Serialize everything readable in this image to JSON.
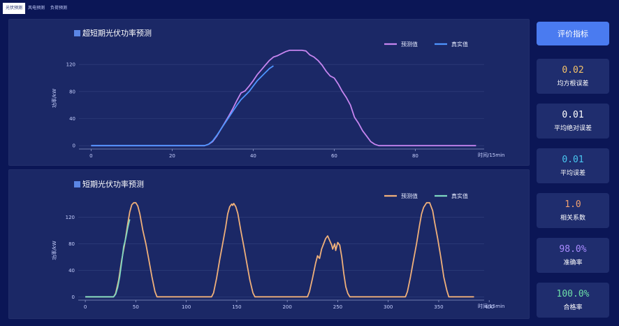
{
  "tabs": [
    {
      "label": "光伏预测",
      "active": true
    },
    {
      "label": "风电预测",
      "active": false
    },
    {
      "label": "负荷预测",
      "active": false
    }
  ],
  "colors": {
    "predicted_top": "#c685f0",
    "actual_top": "#4f95ff",
    "predicted_bottom": "#f0b07a",
    "actual_bottom": "#7ed7c1"
  },
  "chart_data": [
    {
      "type": "line",
      "title": "超短期光伏功率预测",
      "xlabel": "时间/15min",
      "ylabel": "功率/kW",
      "xlim": [
        -3,
        97
      ],
      "ylim": [
        -5,
        145
      ],
      "xticks": [
        0,
        20,
        40,
        60,
        80
      ],
      "yticks": [
        0,
        40,
        80,
        120
      ],
      "legend_position": "top-right",
      "series": [
        {
          "name": "预测值",
          "color": "#c685f0",
          "points": [
            [
              0,
              0
            ],
            [
              10,
              0
            ],
            [
              20,
              0
            ],
            [
              28,
              0
            ],
            [
              29,
              2
            ],
            [
              30,
              6
            ],
            [
              31,
              14
            ],
            [
              32,
              24
            ],
            [
              33,
              34
            ],
            [
              34,
              44
            ],
            [
              35,
              55
            ],
            [
              36,
              67
            ],
            [
              37,
              78
            ],
            [
              38,
              81
            ],
            [
              39,
              88
            ],
            [
              40,
              96
            ],
            [
              41,
              105
            ],
            [
              42,
              112
            ],
            [
              43,
              119
            ],
            [
              44,
              126
            ],
            [
              45,
              131
            ],
            [
              46,
              133
            ],
            [
              47,
              136
            ],
            [
              48,
              139
            ],
            [
              49,
              141
            ],
            [
              50,
              141
            ],
            [
              51,
              141
            ],
            [
              52,
              141
            ],
            [
              53,
              140
            ],
            [
              54,
              134
            ],
            [
              55,
              131
            ],
            [
              56,
              126
            ],
            [
              57,
              119
            ],
            [
              58,
              110
            ],
            [
              59,
              103
            ],
            [
              60,
              100
            ],
            [
              61,
              91
            ],
            [
              62,
              80
            ],
            [
              63,
              71
            ],
            [
              64,
              60
            ],
            [
              65,
              42
            ],
            [
              66,
              33
            ],
            [
              67,
              22
            ],
            [
              68,
              14
            ],
            [
              69,
              6
            ],
            [
              70,
              2
            ],
            [
              71,
              0
            ],
            [
              80,
              0
            ],
            [
              95,
              0
            ]
          ]
        },
        {
          "name": "真实值",
          "color": "#4f95ff",
          "points": [
            [
              0,
              0
            ],
            [
              10,
              0
            ],
            [
              20,
              0
            ],
            [
              28,
              0
            ],
            [
              29,
              2
            ],
            [
              30,
              7
            ],
            [
              31,
              15
            ],
            [
              32,
              24
            ],
            [
              33,
              33
            ],
            [
              34,
              42
            ],
            [
              35,
              51
            ],
            [
              36,
              60
            ],
            [
              37,
              68
            ],
            [
              38,
              74
            ],
            [
              39,
              80
            ],
            [
              40,
              88
            ],
            [
              41,
              96
            ],
            [
              42,
              102
            ],
            [
              43,
              108
            ],
            [
              44,
              114
            ],
            [
              45,
              118
            ]
          ]
        }
      ]
    },
    {
      "type": "line",
      "title": "短期光伏功率预测",
      "xlabel": "时间/15min",
      "ylabel": "功率/kW",
      "xlim": [
        -7,
        395
      ],
      "ylim": [
        -5,
        145
      ],
      "xticks": [
        0,
        50,
        100,
        150,
        200,
        250,
        300,
        350,
        400
      ],
      "yticks": [
        0,
        40,
        80,
        120
      ],
      "legend_position": "top-right",
      "series": [
        {
          "name": "预测值",
          "color": "#f0b07a",
          "points": [
            [
              0,
              0
            ],
            [
              28,
              0
            ],
            [
              30,
              5
            ],
            [
              33,
              25
            ],
            [
              36,
              55
            ],
            [
              39,
              80
            ],
            [
              42,
              110
            ],
            [
              44,
              128
            ],
            [
              46,
              139
            ],
            [
              48,
              142
            ],
            [
              50,
              142
            ],
            [
              52,
              137
            ],
            [
              54,
              125
            ],
            [
              57,
              100
            ],
            [
              60,
              80
            ],
            [
              63,
              55
            ],
            [
              66,
              30
            ],
            [
              69,
              8
            ],
            [
              71,
              0
            ],
            [
              125,
              0
            ],
            [
              127,
              6
            ],
            [
              130,
              28
            ],
            [
              133,
              55
            ],
            [
              136,
              80
            ],
            [
              139,
              105
            ],
            [
              141,
              125
            ],
            [
              143,
              136
            ],
            [
              145,
              140
            ],
            [
              146,
              138
            ],
            [
              147,
              141
            ],
            [
              149,
              136
            ],
            [
              151,
              126
            ],
            [
              154,
              100
            ],
            [
              157,
              76
            ],
            [
              160,
              50
            ],
            [
              163,
              25
            ],
            [
              166,
              6
            ],
            [
              168,
              0
            ],
            [
              220,
              0
            ],
            [
              222,
              8
            ],
            [
              225,
              28
            ],
            [
              228,
              50
            ],
            [
              230,
              62
            ],
            [
              232,
              58
            ],
            [
              234,
              72
            ],
            [
              236,
              80
            ],
            [
              238,
              88
            ],
            [
              240,
              92
            ],
            [
              242,
              85
            ],
            [
              244,
              78
            ],
            [
              245,
              72
            ],
            [
              247,
              80
            ],
            [
              248,
              70
            ],
            [
              250,
              82
            ],
            [
              252,
              78
            ],
            [
              254,
              60
            ],
            [
              256,
              35
            ],
            [
              258,
              15
            ],
            [
              260,
              5
            ],
            [
              262,
              0
            ],
            [
              317,
              0
            ],
            [
              319,
              8
            ],
            [
              322,
              30
            ],
            [
              325,
              55
            ],
            [
              328,
              80
            ],
            [
              331,
              108
            ],
            [
              333,
              125
            ],
            [
              335,
              135
            ],
            [
              338,
              142
            ],
            [
              341,
              142
            ],
            [
              344,
              130
            ],
            [
              346,
              112
            ],
            [
              349,
              88
            ],
            [
              352,
              60
            ],
            [
              355,
              30
            ],
            [
              358,
              10
            ],
            [
              360,
              0
            ],
            [
              385,
              0
            ]
          ]
        },
        {
          "name": "真实值",
          "color": "#7ed7c1",
          "points": [
            [
              0,
              0
            ],
            [
              28,
              0
            ],
            [
              30,
              4
            ],
            [
              32,
              14
            ],
            [
              34,
              30
            ],
            [
              36,
              52
            ],
            [
              37,
              64
            ],
            [
              38,
              76
            ],
            [
              39,
              82
            ],
            [
              40,
              88
            ],
            [
              41,
              96
            ],
            [
              42,
              104
            ],
            [
              43,
              111
            ],
            [
              44,
              117
            ]
          ]
        }
      ]
    }
  ],
  "side": {
    "button_label": "评价指标",
    "metrics": [
      {
        "value": "0.02",
        "label": "均方根误差",
        "color": "#f5c36a"
      },
      {
        "value": "0.01",
        "label": "平均绝对误差",
        "color": "#ffffff"
      },
      {
        "value": "0.01",
        "label": "平均误差",
        "color": "#49c6f0"
      },
      {
        "value": "1.0",
        "label": "相关系数",
        "color": "#f0a070"
      },
      {
        "value": "98.0%",
        "label": "准确率",
        "color": "#a98bff"
      },
      {
        "value": "100.0%",
        "label": "合格率",
        "color": "#6ee0a8"
      }
    ]
  }
}
